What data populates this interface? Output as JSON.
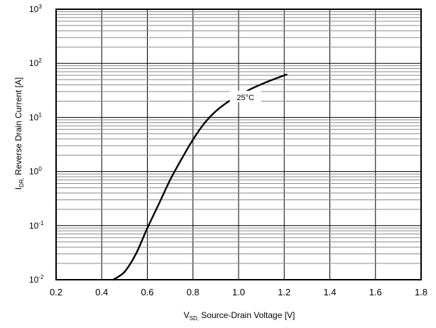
{
  "chart_data": {
    "type": "line",
    "xlabel": {
      "symbol": "V",
      "subscript": "SD,",
      "text": " Source-Drain Voltage [V]"
    },
    "ylabel": {
      "symbol": "I",
      "subscript": "DR,",
      "text": " Reverse Drain Current [A]"
    },
    "xlim": [
      0.2,
      1.8
    ],
    "ylim": [
      0.01,
      1000
    ],
    "yscale": "log",
    "grid": true,
    "xticks": [
      0.2,
      0.4,
      0.6,
      0.8,
      1.0,
      1.2,
      1.4,
      1.6,
      1.8
    ],
    "xtick_labels": [
      "0.2",
      "0.4",
      "0.6",
      "0.8",
      "1.0",
      "1.2",
      "1.4",
      "1.6",
      "1.8"
    ],
    "yticks": [
      {
        "base": "10",
        "exp": "-2",
        "value": 0.01
      },
      {
        "base": "10",
        "exp": "-1",
        "value": 0.1
      },
      {
        "base": "10",
        "exp": "0",
        "value": 1
      },
      {
        "base": "10",
        "exp": "1",
        "value": 10
      },
      {
        "base": "10",
        "exp": "2",
        "value": 100
      },
      {
        "base": "10",
        "exp": "3",
        "value": 1000
      }
    ],
    "series": [
      {
        "points": [
          {
            "x": 0.45,
            "y": 0.01
          },
          {
            "x": 0.5,
            "y": 0.014
          },
          {
            "x": 0.55,
            "y": 0.03
          },
          {
            "x": 0.6,
            "y": 0.09
          },
          {
            "x": 0.65,
            "y": 0.25
          },
          {
            "x": 0.7,
            "y": 0.7
          },
          {
            "x": 0.75,
            "y": 1.7
          },
          {
            "x": 0.8,
            "y": 3.9
          },
          {
            "x": 0.85,
            "y": 7.8
          },
          {
            "x": 0.9,
            "y": 13
          },
          {
            "x": 0.95,
            "y": 19
          },
          {
            "x": 1.0,
            "y": 25
          },
          {
            "x": 1.05,
            "y": 33
          },
          {
            "x": 1.1,
            "y": 41
          },
          {
            "x": 1.15,
            "y": 50
          },
          {
            "x": 1.21,
            "y": 62
          }
        ]
      }
    ],
    "annotations": [
      {
        "text": "25°C",
        "x": 1.03,
        "y": 23
      }
    ]
  }
}
